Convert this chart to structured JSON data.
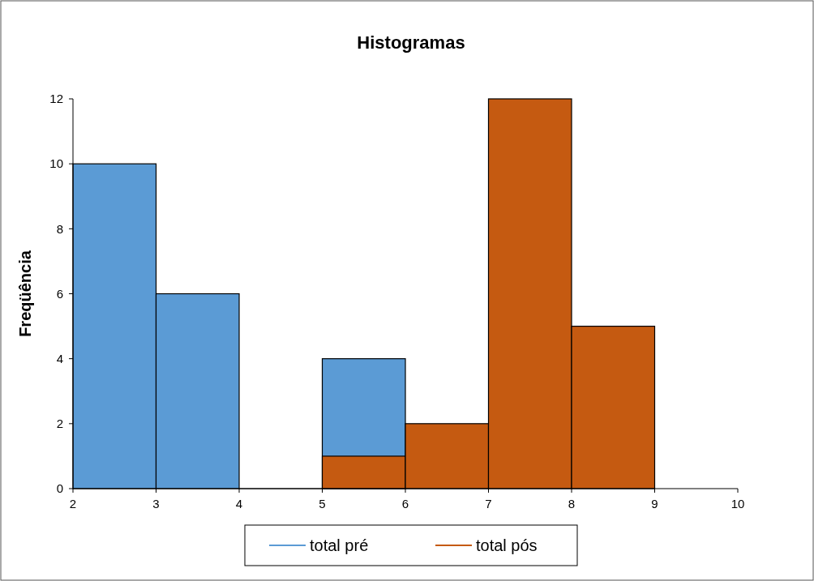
{
  "chart_data": {
    "type": "histogram",
    "title": "Histogramas",
    "ylabel": "Freqüência",
    "bins": [
      2,
      3,
      4,
      5,
      6,
      7,
      8,
      9
    ],
    "series": [
      {
        "name": "total pré",
        "color": "#5b9bd5",
        "values": [
          10,
          6,
          0,
          4,
          null,
          null,
          null
        ]
      },
      {
        "name": "total pós",
        "color": "#c55a11",
        "values": [
          null,
          null,
          null,
          1,
          2,
          12,
          5
        ]
      }
    ],
    "xlim": [
      2,
      10
    ],
    "xticks": [
      2,
      3,
      4,
      5,
      6,
      7,
      8,
      9,
      10
    ],
    "ylim": [
      0,
      12
    ],
    "yticks": [
      0,
      2,
      4,
      6,
      8,
      10,
      12
    ],
    "grid": false,
    "legend": "bottom"
  }
}
